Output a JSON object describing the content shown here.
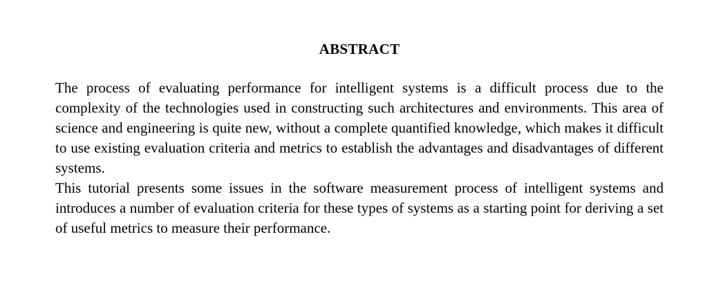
{
  "abstract": {
    "heading": "ABSTRACT",
    "paragraphs": [
      "The process of evaluating performance for intelligent systems is a difficult process due to the complexity of the technologies used in constructing such architectures and environments. This area of science and engineering is quite new, without a complete quantified knowledge, which makes it difficult to use existing evaluation criteria and metrics to establish the advantages and disadvantages of different systems.",
      "This tutorial presents some issues in the software measurement process of intelligent systems and introduces a number of evaluation criteria for these types of systems as a starting point for deriving a set of useful metrics to measure their performance."
    ]
  }
}
